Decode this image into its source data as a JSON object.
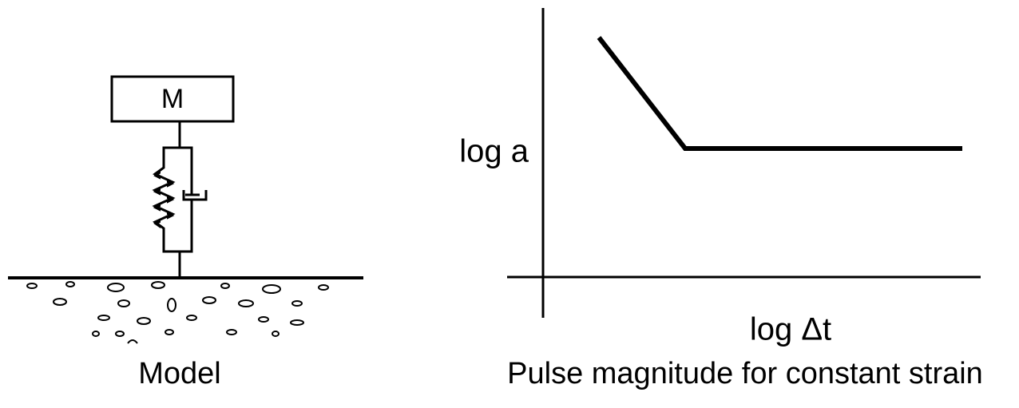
{
  "model": {
    "mass_label": "M",
    "caption": "Model"
  },
  "graph": {
    "y_label": "log a",
    "x_label": "log Δt",
    "caption": "Pulse magnitude for constant strain"
  }
}
